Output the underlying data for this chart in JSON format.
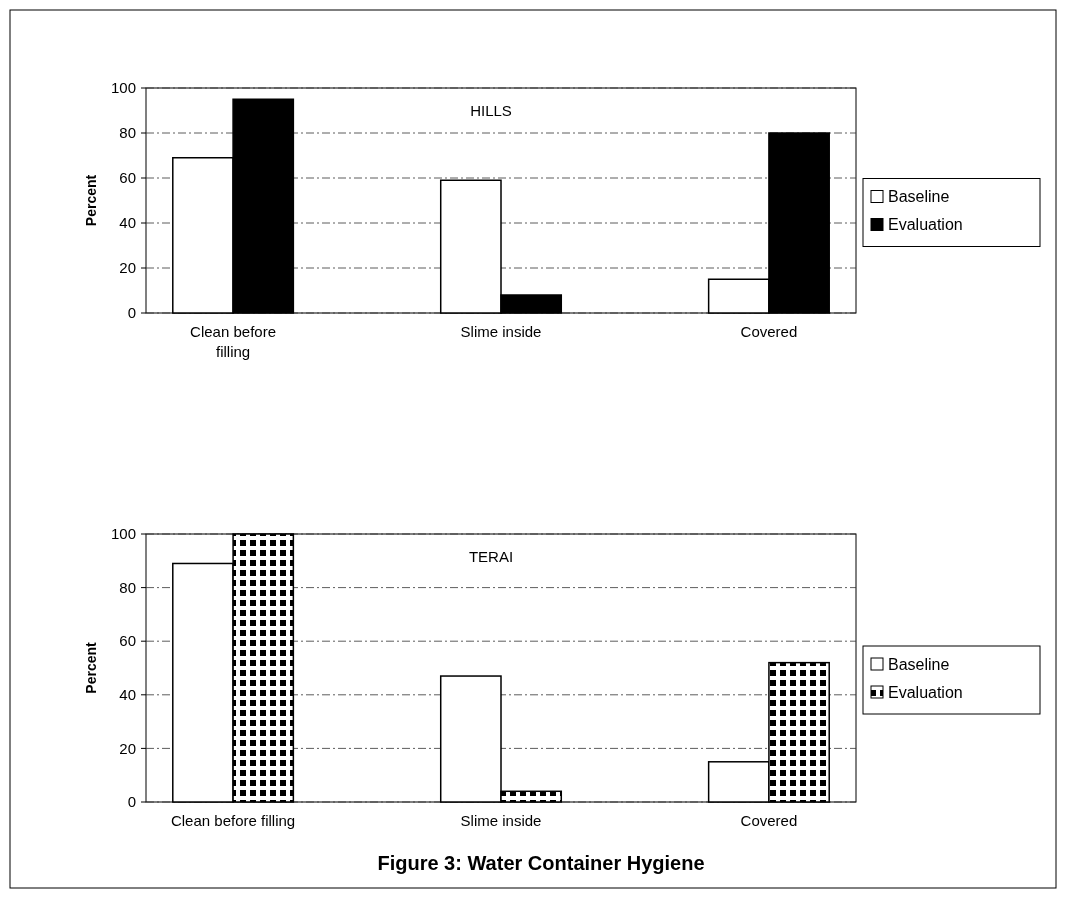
{
  "chart_data": [
    {
      "type": "bar",
      "title": "HILLS",
      "ylabel": "Percent",
      "categories": [
        "Clean before filling",
        "Slime inside",
        "Covered"
      ],
      "series": [
        {
          "name": "Baseline",
          "color": "#ffffff",
          "values": [
            69,
            59,
            15
          ]
        },
        {
          "name": "Evaluation",
          "color": "#000000",
          "values": [
            95,
            8,
            80
          ]
        }
      ],
      "ylim": [
        0,
        100
      ],
      "yticks": [
        0,
        20,
        40,
        60,
        80,
        100
      ],
      "grid": "y",
      "legend": "right"
    },
    {
      "type": "bar",
      "title": "TERAI",
      "ylabel": "Percent",
      "categories": [
        "Clean before filling",
        "Slime inside",
        "Covered"
      ],
      "series": [
        {
          "name": "Baseline",
          "color": "#ffffff",
          "values": [
            89,
            47,
            15
          ]
        },
        {
          "name": "Evaluation",
          "color": "#000000",
          "values": [
            100,
            4,
            52
          ]
        }
      ],
      "ylim": [
        0,
        100
      ],
      "yticks": [
        0,
        20,
        40,
        60,
        80,
        100
      ],
      "grid": "y",
      "legend": "right",
      "annotations": [
        "Figure 3: Water Container Hygiene"
      ]
    }
  ]
}
